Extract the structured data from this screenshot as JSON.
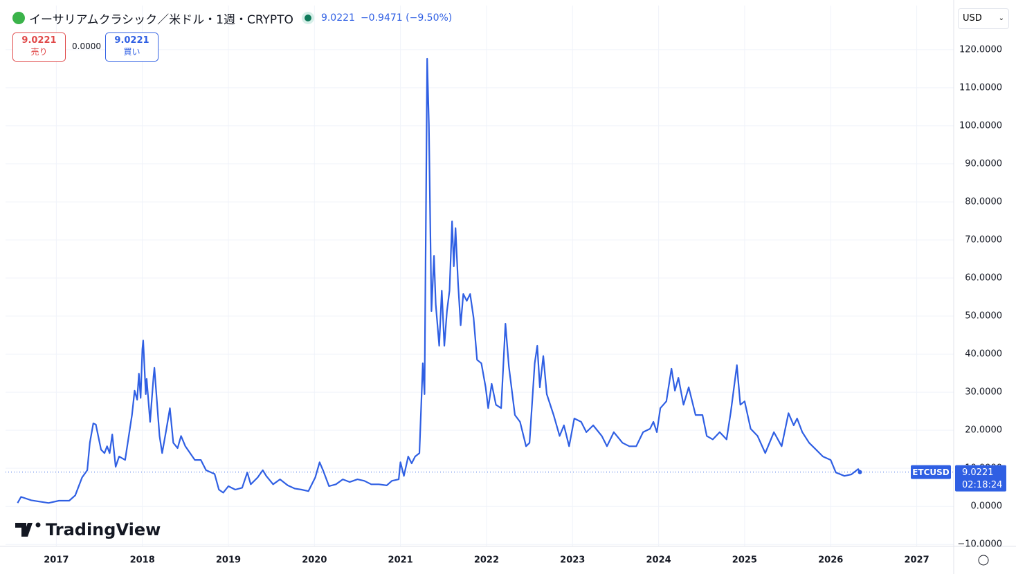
{
  "header": {
    "title": "イーサリアムクラシック／米ドル・1週・CRYPTO",
    "last": "9.0221",
    "change": "−0.9471 (−9.50%)",
    "currency": "USD",
    "logo": "TradingView"
  },
  "trade": {
    "sell_price": "9.0221",
    "sell": "売り",
    "spread": "0.0000",
    "buy_price": "9.0221",
    "buy": "買い"
  },
  "chart_data": {
    "type": "line",
    "color": "#2f5fe3",
    "grid": true,
    "price_label": {
      "value": "9.0221",
      "countdown": "02:18:24"
    },
    "xlim": [
      2016.41,
      2027.43
    ],
    "ylim": [
      -10.5,
      131.6
    ],
    "xticks": [
      2017,
      2018,
      2019,
      2020,
      2021,
      2022,
      2023,
      2024,
      2025,
      2026,
      2027
    ],
    "yticks": [
      {
        "value": -10,
        "label": "−10.0000"
      },
      {
        "value": 0,
        "label": "0.0000"
      },
      {
        "value": 10,
        "label": "10.0000"
      },
      {
        "value": 20,
        "label": "20.0000"
      },
      {
        "value": 30,
        "label": "30.0000"
      },
      {
        "value": 40,
        "label": "40.0000"
      },
      {
        "value": 50,
        "label": "50.0000"
      },
      {
        "value": 60,
        "label": "60.0000"
      },
      {
        "value": 70,
        "label": "70.0000"
      },
      {
        "value": 80,
        "label": "80.0000"
      },
      {
        "value": 90,
        "label": "90.0000"
      },
      {
        "value": 100,
        "label": "100.0000"
      },
      {
        "value": 110,
        "label": "110.0000"
      },
      {
        "value": 120,
        "label": "120.0000"
      }
    ],
    "x": [
      2016.55,
      2016.59,
      2016.71,
      2016.91,
      2017.03,
      2017.15,
      2017.22,
      2017.3,
      2017.36,
      2017.39,
      2017.43,
      2017.46,
      2017.52,
      2017.56,
      2017.59,
      2017.62,
      2017.65,
      2017.69,
      2017.73,
      2017.8,
      2017.88,
      2017.91,
      2017.94,
      2017.96,
      2017.98,
      2018.0,
      2018.01,
      2018.04,
      2018.05,
      2018.09,
      2018.13,
      2018.14,
      2018.2,
      2018.23,
      2018.28,
      2018.32,
      2018.36,
      2018.41,
      2018.45,
      2018.5,
      2018.57,
      2018.61,
      2018.68,
      2018.74,
      2018.84,
      2018.89,
      2018.94,
      2019.0,
      2019.08,
      2019.16,
      2019.22,
      2019.26,
      2019.34,
      2019.4,
      2019.44,
      2019.52,
      2019.6,
      2019.69,
      2019.77,
      2019.85,
      2019.93,
      2020.01,
      2020.06,
      2020.1,
      2020.17,
      2020.25,
      2020.33,
      2020.41,
      2020.5,
      2020.58,
      2020.66,
      2020.75,
      2020.84,
      2020.9,
      2020.98,
      2021.0,
      2021.04,
      2021.09,
      2021.13,
      2021.17,
      2021.22,
      2021.26,
      2021.28,
      2021.31,
      2021.33,
      2021.36,
      2021.39,
      2021.41,
      2021.45,
      2021.48,
      2021.51,
      2021.54,
      2021.57,
      2021.6,
      2021.62,
      2021.64,
      2021.67,
      2021.7,
      2021.73,
      2021.77,
      2021.81,
      2021.85,
      2021.89,
      2021.94,
      2021.99,
      2022.02,
      2022.06,
      2022.11,
      2022.17,
      2022.22,
      2022.26,
      2022.33,
      2022.39,
      2022.46,
      2022.5,
      2022.56,
      2022.59,
      2022.62,
      2022.66,
      2022.7,
      2022.78,
      2022.85,
      2022.9,
      2022.96,
      2023.02,
      2023.1,
      2023.16,
      2023.24,
      2023.34,
      2023.4,
      2023.48,
      2023.58,
      2023.66,
      2023.74,
      2023.82,
      2023.9,
      2023.94,
      2023.98,
      2024.02,
      2024.09,
      2024.15,
      2024.19,
      2024.23,
      2024.29,
      2024.35,
      2024.43,
      2024.51,
      2024.56,
      2024.63,
      2024.71,
      2024.79,
      2024.84,
      2024.91,
      2024.95,
      2025.0,
      2025.07,
      2025.15,
      2025.24,
      2025.34,
      2025.43,
      2025.51,
      2025.57,
      2025.61,
      2025.67,
      2025.75,
      2025.83,
      2025.91,
      2026.0,
      2026.06,
      2026.16,
      2026.24,
      2026.32,
      2026.34
    ],
    "series": [
      {
        "name": "ETCUSD",
        "color": "#2f5fe3",
        "values": [
          0.9,
          2.5,
          1.6,
          0.9,
          1.5,
          1.5,
          2.9,
          7.6,
          9.5,
          16.7,
          21.8,
          21.5,
          14.9,
          14.0,
          15.8,
          14.0,
          18.9,
          10.4,
          13.1,
          12.2,
          24.0,
          30.4,
          28.0,
          34.9,
          28.5,
          41.3,
          43.6,
          29.5,
          33.5,
          22.2,
          34.0,
          36.4,
          18.5,
          14.0,
          20.4,
          25.8,
          16.7,
          15.3,
          18.5,
          15.8,
          13.5,
          12.2,
          12.2,
          9.5,
          8.5,
          4.4,
          3.6,
          5.3,
          4.4,
          4.9,
          8.9,
          5.8,
          7.6,
          9.5,
          8.0,
          5.8,
          7.1,
          5.5,
          4.7,
          4.4,
          4.0,
          7.6,
          11.6,
          9.5,
          5.3,
          5.8,
          7.1,
          6.4,
          7.1,
          6.7,
          5.8,
          5.8,
          5.5,
          6.7,
          7.1,
          11.6,
          8.0,
          13.1,
          11.3,
          13.1,
          14.0,
          37.6,
          29.5,
          117.6,
          100.4,
          51.3,
          65.8,
          53.1,
          42.2,
          56.7,
          42.2,
          51.3,
          56.7,
          74.9,
          63.1,
          73.1,
          58.5,
          47.6,
          55.8,
          54.0,
          55.8,
          49.5,
          38.5,
          37.6,
          31.3,
          25.8,
          32.2,
          26.7,
          25.8,
          48.0,
          36.7,
          24.0,
          22.2,
          15.8,
          16.7,
          37.6,
          42.2,
          31.3,
          39.5,
          29.5,
          24.0,
          18.5,
          21.3,
          15.8,
          23.1,
          22.2,
          19.5,
          21.3,
          18.5,
          15.8,
          19.5,
          16.7,
          15.8,
          15.8,
          19.5,
          20.4,
          22.2,
          19.5,
          25.8,
          27.6,
          36.2,
          30.4,
          33.8,
          26.7,
          31.3,
          24.0,
          24.0,
          18.5,
          17.6,
          19.5,
          17.6,
          24.9,
          37.1,
          26.7,
          27.6,
          20.4,
          18.5,
          14.0,
          19.5,
          15.8,
          24.5,
          21.3,
          23.1,
          19.5,
          16.7,
          14.9,
          13.1,
          12.2,
          8.9,
          8.0,
          8.4,
          9.8,
          9.0221
        ]
      }
    ]
  }
}
